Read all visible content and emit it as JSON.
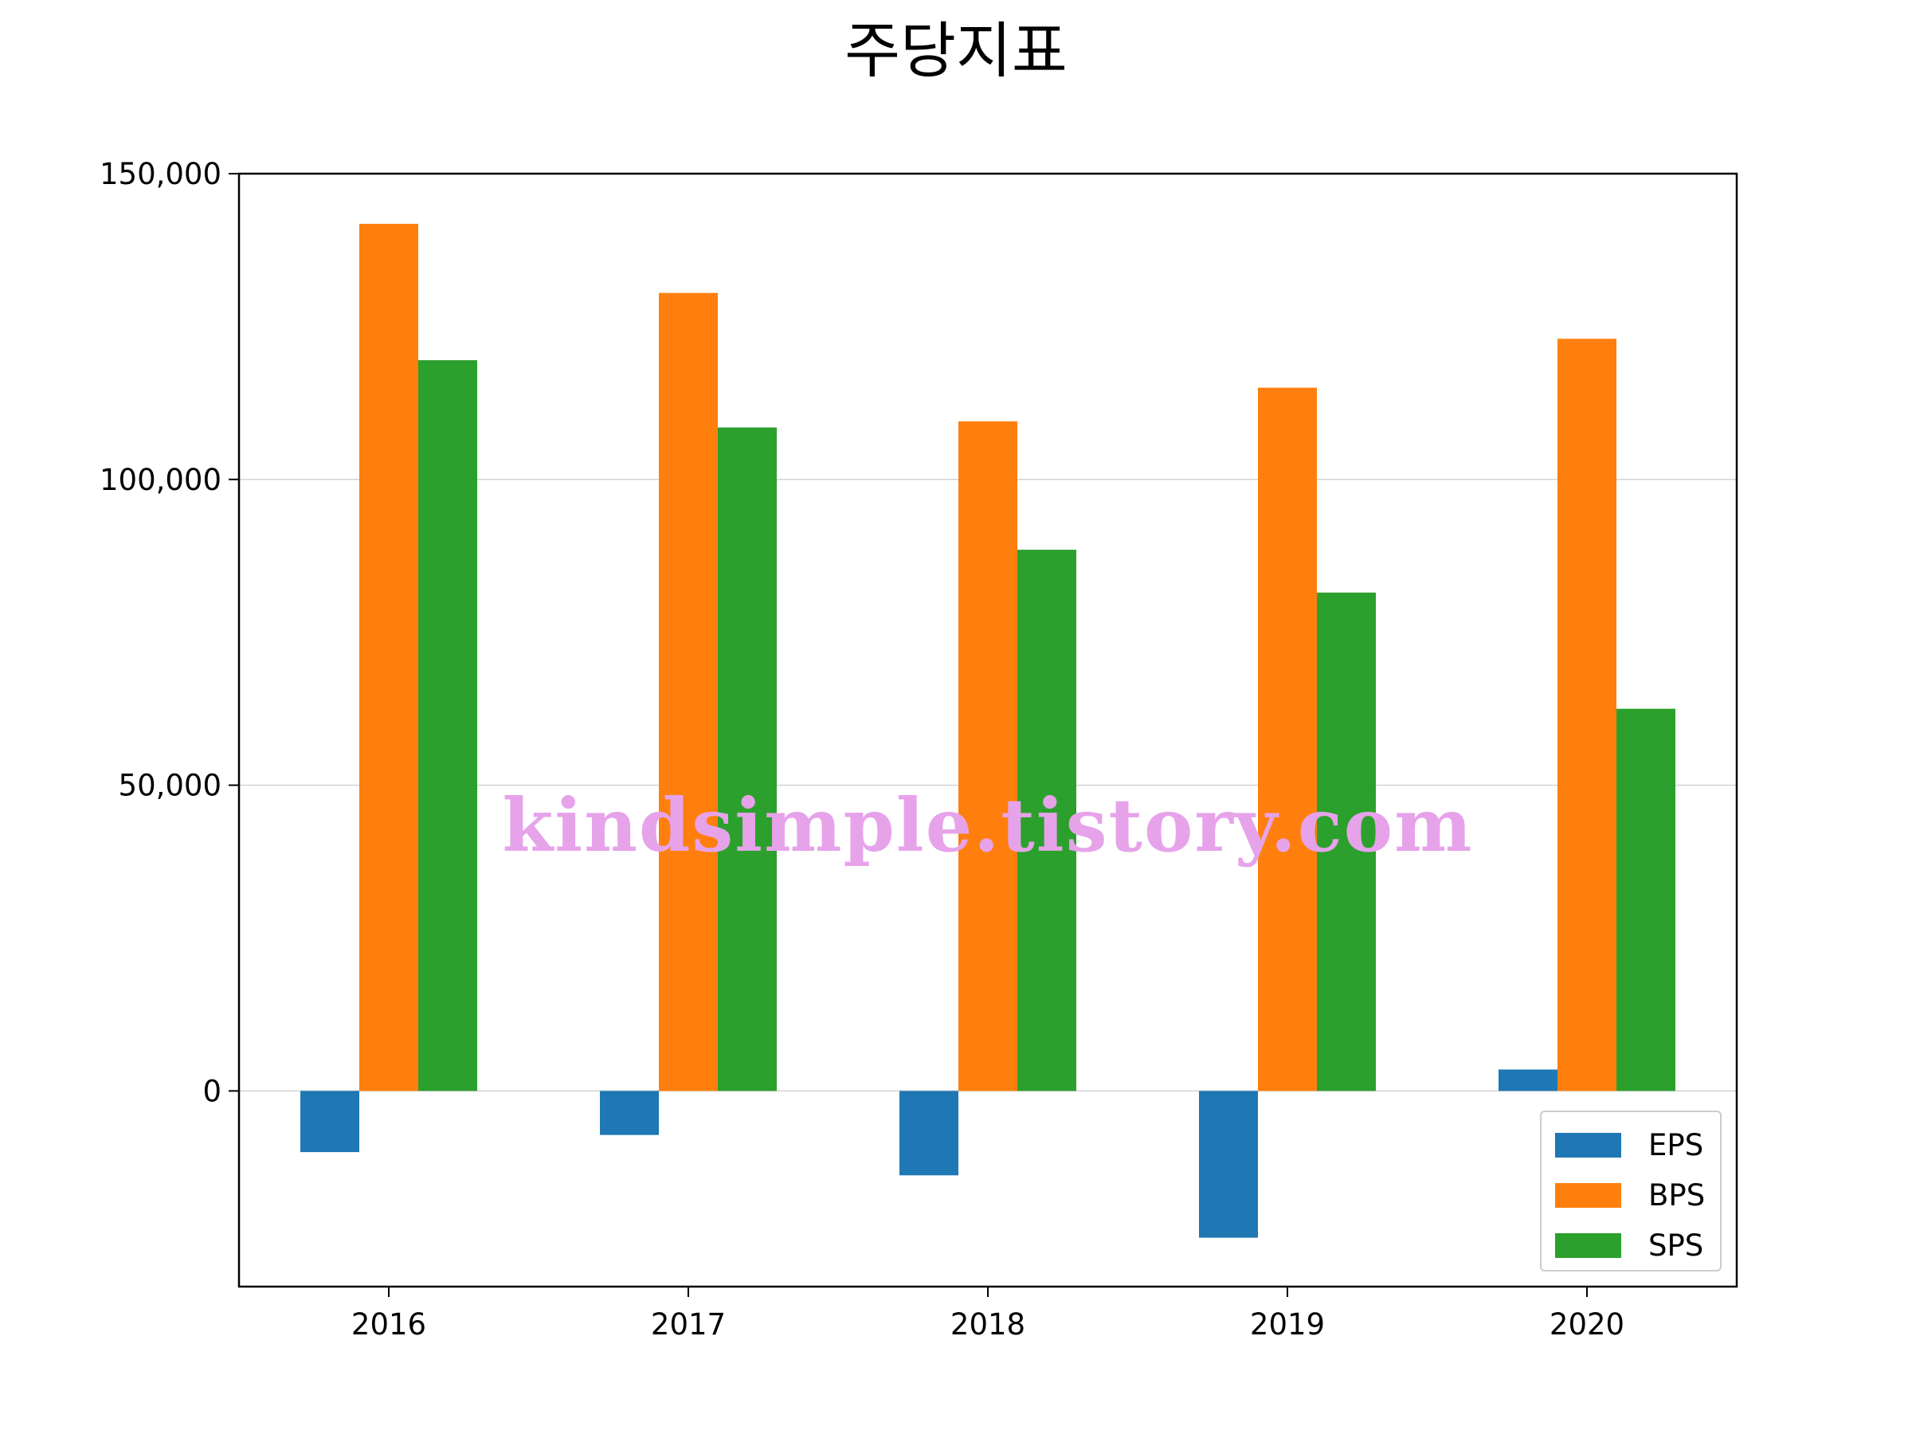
{
  "chart_data": {
    "type": "bar",
    "title": "주당지표",
    "xlabel": "",
    "ylabel": "",
    "categories": [
      "2016",
      "2017",
      "2018",
      "2019",
      "2020"
    ],
    "series": [
      {
        "name": "EPS",
        "color": "#1f77b4",
        "values": [
          -10000,
          -7200,
          -13800,
          -24000,
          3500
        ]
      },
      {
        "name": "BPS",
        "color": "#ff7f0e",
        "values": [
          141800,
          130500,
          109500,
          115000,
          123000
        ]
      },
      {
        "name": "SPS",
        "color": "#2ca02c",
        "values": [
          119500,
          108500,
          88500,
          81500,
          62500
        ]
      }
    ],
    "ylim": [
      -32000,
      150000
    ],
    "yticks": [
      0,
      50000,
      100000,
      150000
    ],
    "ytick_labels": [
      "0",
      "50,000",
      "100,000",
      "150,000"
    ],
    "grid": "y",
    "legend_position": "lower-right"
  },
  "watermark": "kindsimple.tistory.com"
}
